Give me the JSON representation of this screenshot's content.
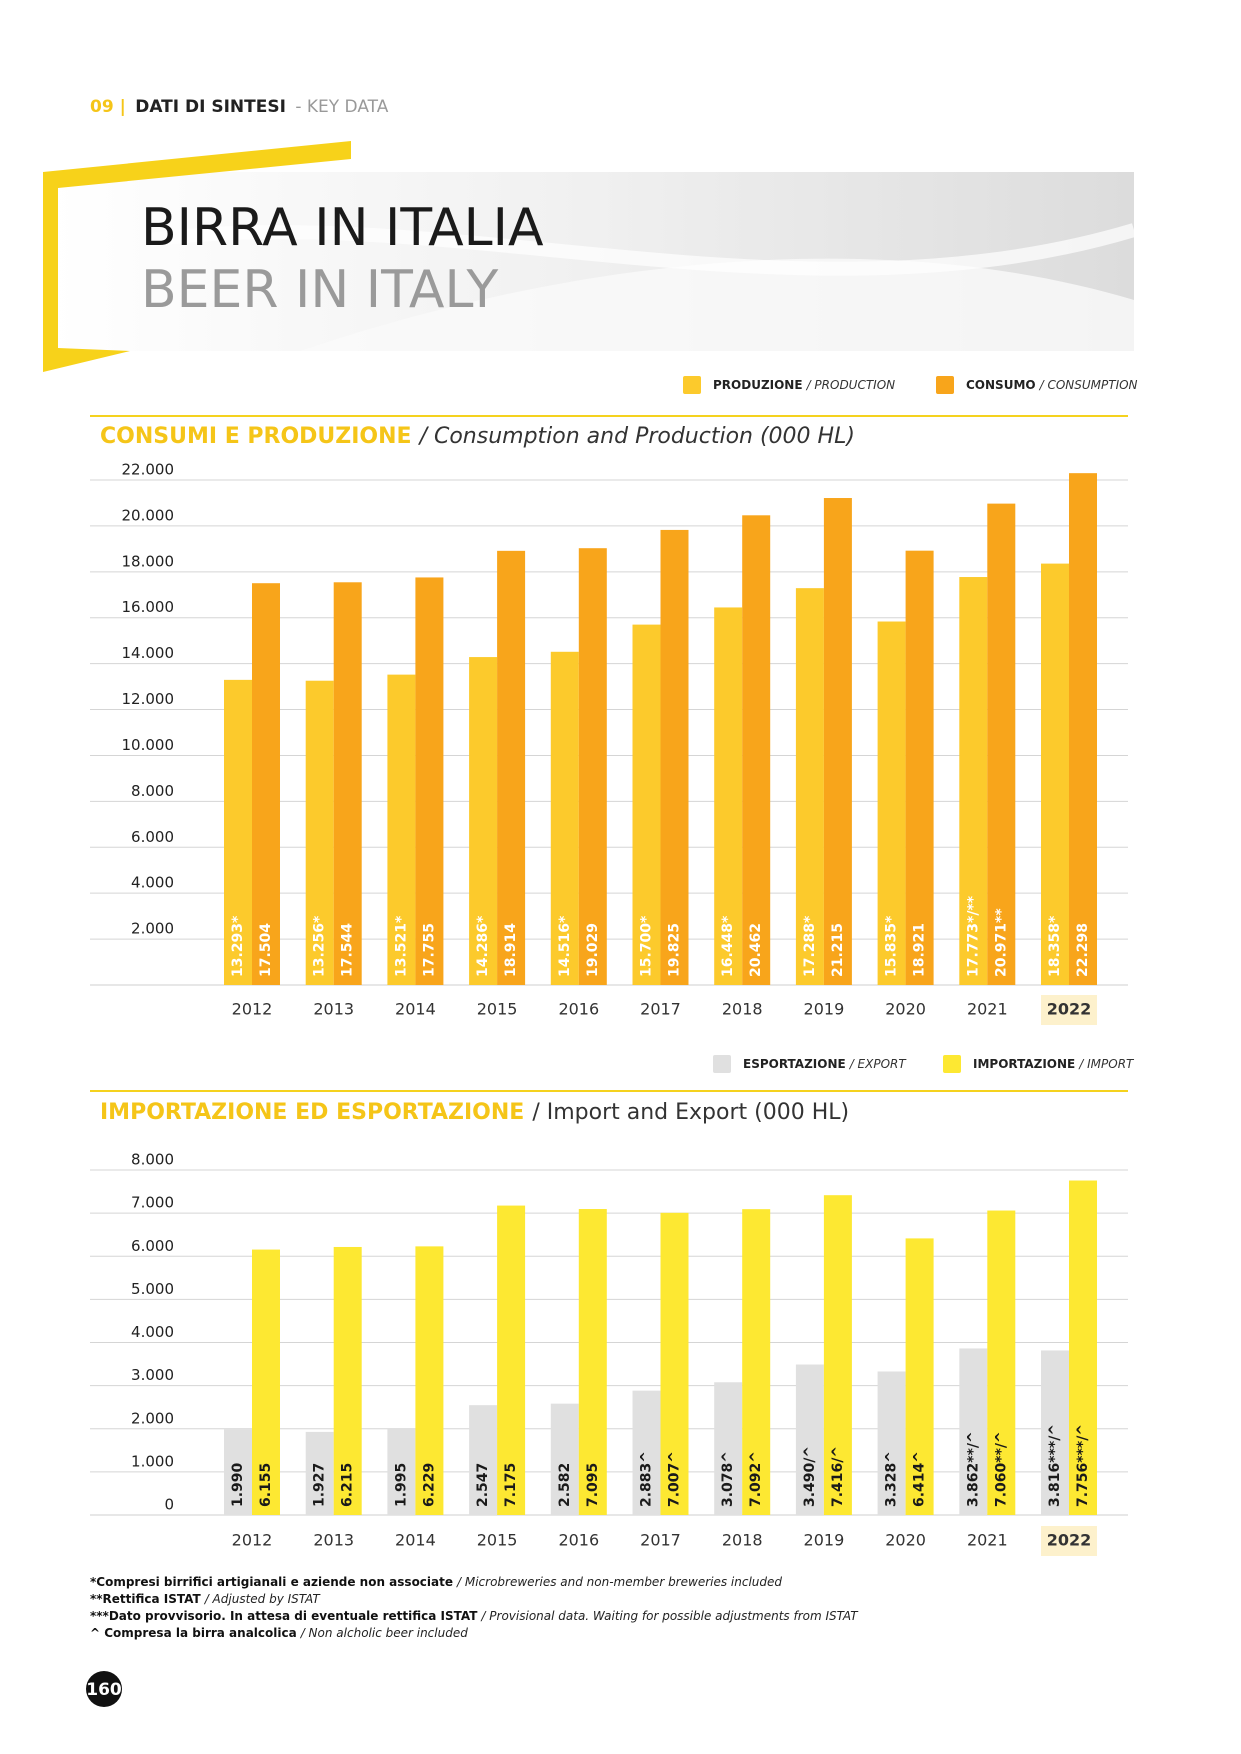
{
  "header": {
    "section": "09 |",
    "label": "DATI DI SINTESI",
    "label_en": "- KEY DATA"
  },
  "title": "BIRRA IN ITALIA",
  "subtitle": "BEER IN ITALY",
  "chart_data": [
    {
      "type": "bar",
      "title": "CONSUMI E PRODUZIONE",
      "subtitle": "/ Consumption and Production (000 HL)",
      "categories": [
        "2012",
        "2013",
        "2014",
        "2015",
        "2016",
        "2017",
        "2018",
        "2019",
        "2020",
        "2021",
        "2022"
      ],
      "highlight": 10,
      "series": [
        {
          "name": "PRODUZIONE",
          "name_en": "/ PRODUCTION",
          "color": "#fcca2c",
          "values": [
            13293,
            13256,
            13521,
            14286,
            14516,
            15700,
            16448,
            17288,
            15835,
            17773,
            18358
          ],
          "value_labels": [
            "13.293*",
            "13.256*",
            "13.521*",
            "14.286*",
            "14.516*",
            "15.700*",
            "16.448*",
            "17.288*",
            "15.835*",
            "17.773*/**",
            "18.358*"
          ]
        },
        {
          "name": "CONSUMO",
          "name_en": "/ CONSUMPTION",
          "color": "#f8a51b",
          "values": [
            17504,
            17544,
            17755,
            18914,
            19029,
            19825,
            20462,
            21215,
            18921,
            20971,
            22298
          ],
          "value_labels": [
            "17.504",
            "17.544",
            "17.755",
            "18.914",
            "19.029",
            "19.825",
            "20.462",
            "21.215",
            "18.921",
            "20.971**",
            "22.298"
          ]
        }
      ],
      "ylim": [
        0,
        22000
      ],
      "yticks": [
        {
          "value": 2000,
          "label": "2.000"
        },
        {
          "value": 4000,
          "label": "4.000"
        },
        {
          "value": 6000,
          "label": "6.000"
        },
        {
          "value": 8000,
          "label": "8.000"
        },
        {
          "value": 10000,
          "label": "10.000"
        },
        {
          "value": 12000,
          "label": "12.000"
        },
        {
          "value": 14000,
          "label": "14.000"
        },
        {
          "value": 16000,
          "label": "16.000"
        },
        {
          "value": 18000,
          "label": "18.000"
        },
        {
          "value": 20000,
          "label": "20.000"
        },
        {
          "value": 22000,
          "label": "22.000"
        }
      ],
      "grid": true
    },
    {
      "type": "bar",
      "title": "IMPORTAZIONE ED ESPORTAZIONE",
      "subtitle": "/ Import and Export (000 HL)",
      "categories": [
        "2012",
        "2013",
        "2014",
        "2015",
        "2016",
        "2017",
        "2018",
        "2019",
        "2020",
        "2021",
        "2022"
      ],
      "highlight": 10,
      "series": [
        {
          "name": "ESPORTAZIONE",
          "name_en": "/ EXPORT",
          "color": "#e0e0e0",
          "values": [
            1990,
            1927,
            1995,
            2547,
            2582,
            2883,
            3078,
            3490,
            3328,
            3862,
            3816
          ],
          "value_labels": [
            "1.990",
            "1.927",
            "1.995",
            "2.547",
            "2.582",
            "2.883^",
            "3.078^",
            "3.490/^",
            "3.328^",
            "3.862**/^",
            "3.816***/^"
          ]
        },
        {
          "name": "IMPORTAZIONE",
          "name_en": "/ IMPORT",
          "color": "#fde832",
          "values": [
            6155,
            6215,
            6229,
            7175,
            7095,
            7007,
            7092,
            7416,
            6414,
            7060,
            7756
          ],
          "value_labels": [
            "6.155",
            "6.215",
            "6.229",
            "7.175",
            "7.095",
            "7.007^",
            "7.092^",
            "7.416/^",
            "6.414^",
            "7.060**/^",
            "7.756***/^"
          ]
        }
      ],
      "ylim": [
        0,
        8000
      ],
      "yticks": [
        0,
        {
          "value": 1000,
          "label": "1.000"
        },
        {
          "value": 2000,
          "label": "2.000"
        },
        {
          "value": 3000,
          "label": "3.000"
        },
        {
          "value": 4000,
          "label": "4.000"
        },
        {
          "value": 5000,
          "label": "5.000"
        },
        {
          "value": 6000,
          "label": "6.000"
        },
        {
          "value": 7000,
          "label": "7.000"
        },
        {
          "value": 8000,
          "label": "8.000"
        }
      ],
      "grid": true
    }
  ],
  "footnotes": [
    {
      "bold": "*Compresi birrifici artigianali e aziende non associate",
      "text": "/ Microbreweries and non-member breweries included"
    },
    {
      "bold": "**Rettifica ISTAT",
      "text": "/ Adjusted by ISTAT"
    },
    {
      "bold": "***Dato provvisorio. In attesa di eventuale rettifica ISTAT",
      "text": "/ Provisional data. Waiting for possible adjustments from ISTAT"
    },
    {
      "bold": "^ Compresa la birra analcolica",
      "text": "/ Non alcholic beer included"
    }
  ],
  "page_number": "160"
}
